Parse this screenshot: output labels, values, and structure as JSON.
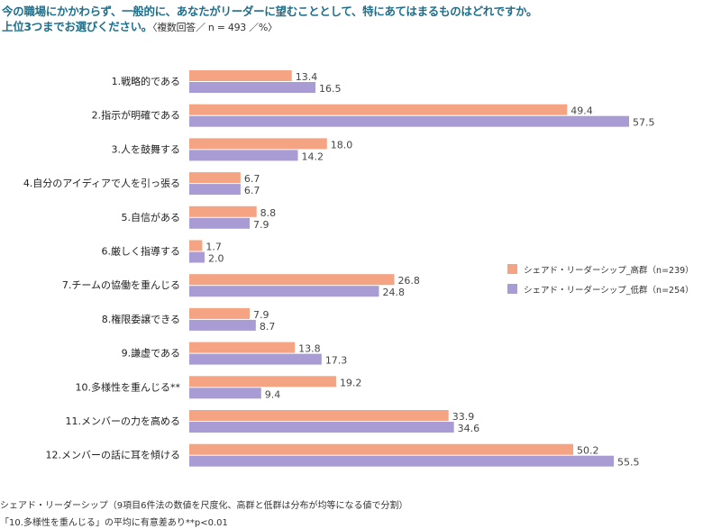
{
  "header": {
    "title_line1": "今の職場にかかわらず、一般的に、あなたがリーダーに望むこととして、特にあてはまるものはどれですか。",
    "title_line2": "上位3つまでお選びください。",
    "title_note": "〈複数回答／ n = 493 ／%〉"
  },
  "chart_data": {
    "type": "bar",
    "orientation": "horizontal",
    "categories": [
      "1.戦略的である",
      "2.指示が明確である",
      "3.人を鼓舞する",
      "4.自分のアイディアで人を引っ張る",
      "5.自信がある",
      "6.厳しく指導する",
      "7.チームの協働を重んじる",
      "8.権限委譲できる",
      "9.謙虚である",
      "10.多様性を重んじる**",
      "11.メンバーの力を高める",
      "12.メンバーの話に耳を傾ける"
    ],
    "series": [
      {
        "name": "シェアド・リーダーシップ_高群（n=239）",
        "color": "#f4a383",
        "values": [
          13.4,
          49.4,
          18.0,
          6.7,
          8.8,
          1.7,
          26.8,
          7.9,
          13.8,
          19.2,
          33.9,
          50.2
        ]
      },
      {
        "name": "シェアド・リーダーシップ_低群（n=254）",
        "color": "#a99cd4",
        "values": [
          16.5,
          57.5,
          14.2,
          6.7,
          7.9,
          2.0,
          24.8,
          8.7,
          17.3,
          9.4,
          34.6,
          55.5
        ]
      }
    ],
    "xlim": [
      0,
      60
    ],
    "legend": "right",
    "grid": false
  },
  "footnotes": {
    "note1": "シェアド・リーダーシップ（9項目6件法の数値を尺度化、高群と低群は分布が均等になる値で分割）",
    "note2": "「10.多様性を重んじる」の平均に有意差あり**p<0.01"
  }
}
